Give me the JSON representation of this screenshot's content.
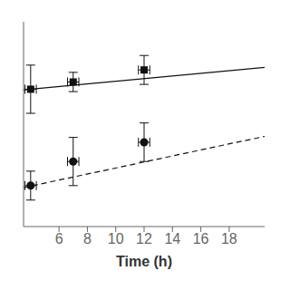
{
  "chart_data": {
    "type": "scatter",
    "xlabel": "Time (h)",
    "xlim": [
      3.5,
      20.5
    ],
    "xticks": [
      6,
      8,
      10,
      12,
      14,
      16,
      18
    ],
    "ylim": [
      0.25,
      1.1
    ],
    "yticks": [],
    "tick_labels": "x",
    "grid": false,
    "series": [
      {
        "type": "line",
        "line_style": "solid",
        "color": "#111111",
        "x": [
          3.5,
          20.5
        ],
        "values": [
          0.81725,
          0.91075
        ]
      },
      {
        "type": "line",
        "line_style": "dashed",
        "color": "#111111",
        "x": [
          3.5,
          20.5
        ],
        "values": [
          0.41175,
          0.62425
        ]
      },
      {
        "type": "scatter",
        "marker": "square",
        "color": "#111111",
        "x": [
          4,
          7,
          12
        ],
        "values": [
          0.82,
          0.85,
          0.9
        ],
        "yerr": [
          0.1,
          0.04,
          0.06
        ],
        "xerr": [
          0.4,
          0.4,
          0.4
        ]
      },
      {
        "type": "scatter",
        "marker": "circle",
        "color": "#111111",
        "x": [
          4,
          7,
          12
        ],
        "values": [
          0.42,
          0.52,
          0.6
        ],
        "yerr": [
          0.06,
          0.1,
          0.08
        ],
        "xerr": [
          0.4,
          0.4,
          0.4
        ]
      }
    ]
  }
}
